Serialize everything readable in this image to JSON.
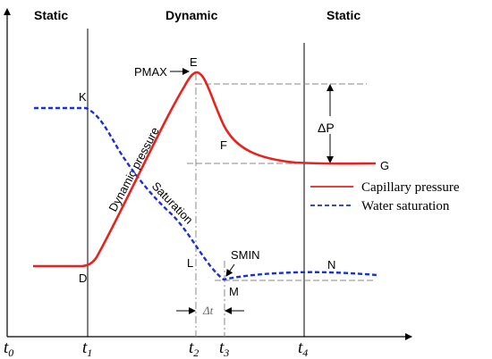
{
  "phases": {
    "left": "Static",
    "middle": "Dynamic",
    "right": "Static"
  },
  "points": {
    "K": "K",
    "E": "E",
    "F": "F",
    "G": "G",
    "D": "D",
    "L": "L",
    "M": "M",
    "N": "N"
  },
  "annotations": {
    "pmax": "PMAX",
    "smin": "SMIN",
    "delta_p": "ΔP",
    "delta_t": "Δt",
    "dynamic_pressure": "Dynamic pressure",
    "saturation": "Saturation"
  },
  "time_ticks": {
    "t0_base": "t",
    "t0_sub": "0",
    "t1_base": "t",
    "t1_sub": "1",
    "t2_base": "t",
    "t2_sub": "2",
    "t3_base": "t",
    "t3_sub": "3",
    "t4_base": "t",
    "t4_sub": "4"
  },
  "legend": {
    "capillary": "Capillary pressure",
    "water": "Water saturation"
  },
  "colors": {
    "capillary_line": "#e8231f",
    "water_line": "#1a2fd6",
    "axis": "#000000",
    "guide": "#8a8a8a"
  }
}
